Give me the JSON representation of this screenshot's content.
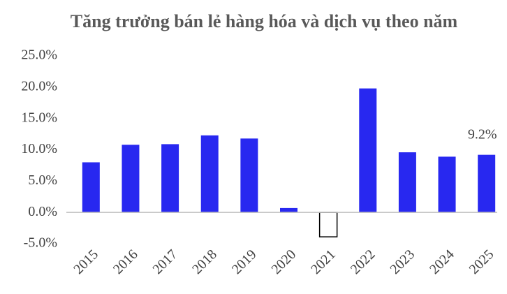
{
  "chart_data": {
    "type": "bar",
    "title": "Tăng trưởng bán lẻ hàng hóa và dịch vụ theo năm",
    "categories": [
      "2015",
      "2016",
      "2017",
      "2018",
      "2019",
      "2020",
      "2021",
      "2022",
      "2023",
      "2024",
      "2025"
    ],
    "values": [
      8.0,
      10.8,
      10.9,
      12.3,
      11.8,
      0.7,
      -3.9,
      19.8,
      9.6,
      8.9,
      9.2
    ],
    "value_labels": [
      null,
      null,
      null,
      null,
      null,
      null,
      null,
      null,
      null,
      null,
      "9.2%"
    ],
    "colors": [
      "#2828f0",
      "#2828f0",
      "#2828f0",
      "#2828f0",
      "#2828f0",
      "#2828f0",
      "#ffffff",
      "#2828f0",
      "#2828f0",
      "#2828f0",
      "#2828f0"
    ],
    "ylim": [
      -5,
      25
    ],
    "yticks": [
      {
        "value": -5,
        "label": "-5.0%"
      },
      {
        "value": 0,
        "label": "0.0%"
      },
      {
        "value": 5,
        "label": "5.0%"
      },
      {
        "value": 10,
        "label": "10.0%"
      },
      {
        "value": 15,
        "label": "15.0%"
      },
      {
        "value": 20,
        "label": "20.0%"
      },
      {
        "value": 25,
        "label": "25.0%"
      }
    ],
    "grid": false
  }
}
